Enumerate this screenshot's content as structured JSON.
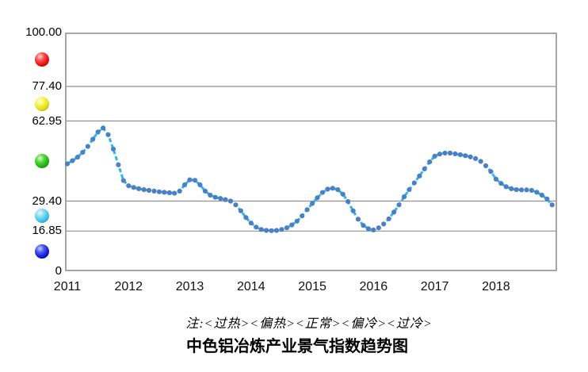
{
  "title": "中色铝冶炼产业景气指数趋势图",
  "note": "注:<过热><偏热><正常><偏冷><过冷>",
  "y_axis": {
    "tick_labels": [
      "100.00",
      "77.40",
      "62.95",
      "29.40",
      "16.85",
      "0"
    ],
    "tick_values": [
      100.0,
      77.4,
      62.95,
      29.4,
      16.85,
      0
    ]
  },
  "x_axis": {
    "year_labels": [
      "2011",
      "2012",
      "2013",
      "2014",
      "2015",
      "2016",
      "2017",
      "2018"
    ]
  },
  "zones": [
    {
      "name": "过热",
      "icon": "red-ball-icon",
      "color": "#e01111",
      "range": [
        77.4,
        100.0
      ]
    },
    {
      "name": "偏热",
      "icon": "yellow-ball-icon",
      "color": "#e8e020",
      "range": [
        62.95,
        77.4
      ]
    },
    {
      "name": "正常",
      "icon": "green-ball-icon",
      "color": "#26b31a",
      "range": [
        29.4,
        62.95
      ]
    },
    {
      "name": "偏冷",
      "icon": "cyan-ball-icon",
      "color": "#45c2e8",
      "range": [
        16.85,
        29.4
      ]
    },
    {
      "name": "过冷",
      "icon": "blue-ball-icon",
      "color": "#1518d6",
      "range": [
        0,
        16.85
      ]
    }
  ],
  "chart_data": {
    "type": "line",
    "title": "中色铝冶炼产业景气指数趋势图",
    "interval": "monthly",
    "x_start": "2011-01",
    "x_end": "2018-12",
    "ylim": [
      0,
      100
    ],
    "gridlines": [
      77.4,
      62.95,
      29.4,
      16.85
    ],
    "legend_position": "none",
    "line_color": "#2bb8e6",
    "dot_color": "#4b80c4",
    "series": [
      {
        "name": "景气指数",
        "values": [
          45.0,
          46.3,
          47.8,
          49.8,
          52.3,
          55.3,
          58.3,
          60.0,
          57.2,
          51.2,
          44.6,
          38.0,
          35.8,
          35.1,
          34.6,
          34.2,
          33.9,
          33.6,
          33.3,
          33.1,
          32.9,
          32.7,
          33.6,
          36.2,
          38.3,
          38.1,
          36.2,
          33.6,
          31.9,
          31.0,
          30.5,
          30.0,
          29.4,
          27.8,
          25.3,
          22.5,
          20.2,
          18.5,
          17.5,
          17.1,
          17.0,
          17.1,
          17.5,
          18.2,
          19.4,
          21.0,
          23.2,
          25.8,
          28.4,
          30.8,
          33.0,
          34.4,
          34.8,
          34.2,
          32.3,
          29.2,
          25.3,
          21.8,
          19.2,
          17.8,
          17.3,
          18.2,
          19.8,
          22.0,
          24.8,
          27.8,
          31.2,
          34.2,
          37.0,
          39.9,
          42.9,
          45.8,
          48.2,
          49.1,
          49.5,
          49.5,
          49.2,
          48.8,
          48.4,
          47.9,
          47.2,
          46.0,
          44.2,
          41.8,
          38.6,
          36.8,
          35.4,
          34.6,
          34.2,
          34.1,
          34.1,
          33.9,
          33.1,
          31.9,
          30.3,
          27.8
        ]
      }
    ]
  },
  "colors": {
    "border": "#a6a6a6",
    "gridline": "#8f8f8f",
    "line": "#2bb8e6",
    "dot": "#4b80c4"
  }
}
